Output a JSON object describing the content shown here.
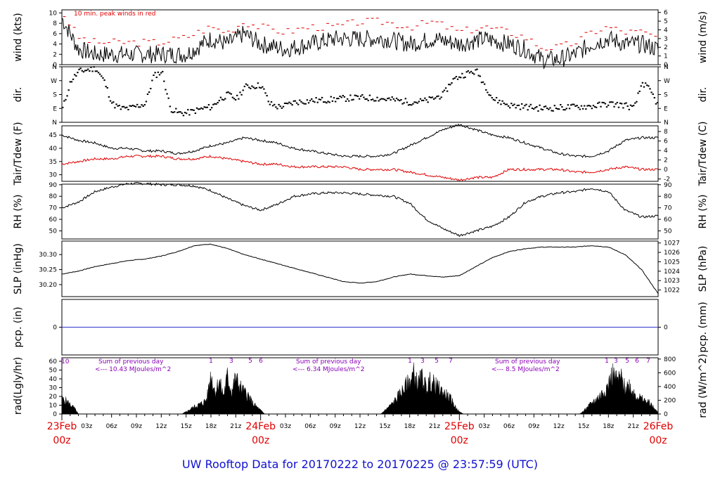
{
  "title": "UW Rooftop Data for 20170222  to  20170225 @ 23:57:59  (UTC)",
  "colors": {
    "text": "#000000",
    "red": "#e00000",
    "blue": "#1010d0",
    "purple": "#8a00b8",
    "precip": "#3333cc"
  },
  "x_axis": {
    "hours_total": 72,
    "hour_ticks": [
      {
        "h": 3,
        "label": "03z"
      },
      {
        "h": 6,
        "label": "06z"
      },
      {
        "h": 9,
        "label": "09z"
      },
      {
        "h": 12,
        "label": "12z"
      },
      {
        "h": 15,
        "label": "15z"
      },
      {
        "h": 18,
        "label": "18z"
      },
      {
        "h": 21,
        "label": "21z"
      },
      {
        "h": 27,
        "label": "03z"
      },
      {
        "h": 30,
        "label": "06z"
      },
      {
        "h": 33,
        "label": "09z"
      },
      {
        "h": 36,
        "label": "12z"
      },
      {
        "h": 39,
        "label": "15z"
      },
      {
        "h": 42,
        "label": "18z"
      },
      {
        "h": 45,
        "label": "21z"
      },
      {
        "h": 51,
        "label": "03z"
      },
      {
        "h": 54,
        "label": "06z"
      },
      {
        "h": 57,
        "label": "09z"
      },
      {
        "h": 60,
        "label": "12z"
      },
      {
        "h": 63,
        "label": "15z"
      },
      {
        "h": 66,
        "label": "18z"
      },
      {
        "h": 69,
        "label": "21z"
      }
    ],
    "day_labels": [
      {
        "h": 0,
        "date": "23Feb",
        "time": "00z"
      },
      {
        "h": 24,
        "date": "24Feb",
        "time": "00z"
      },
      {
        "h": 48,
        "date": "25Feb",
        "time": "00z"
      },
      {
        "h": 72,
        "date": "26Feb",
        "time": "00z"
      }
    ]
  },
  "panels": {
    "wind": {
      "ylabel_left": "wind (kts)",
      "ylabel_right": "wind (m/s)",
      "left_ticks": [
        "0",
        "2",
        "4",
        "6",
        "8",
        "10"
      ],
      "right_ticks": [
        "0",
        "1",
        "2",
        "3",
        "4",
        "5",
        "6"
      ],
      "legend": "10 min. peak winds in red"
    },
    "dir": {
      "ylabel_left": "dir.",
      "ylabel_right": "dir.",
      "left_ticks": [
        "N",
        "E",
        "S",
        "W",
        "N"
      ],
      "right_ticks": [
        "N",
        "E",
        "S",
        "W",
        "N"
      ]
    },
    "temp": {
      "ylabel_left": "Tair/Tdew (F)",
      "ylabel_right": "Tair/Tdew (C)",
      "left_ticks": [
        "30",
        "35",
        "40",
        "45"
      ],
      "right_ticks": [
        "-2",
        "0",
        "2",
        "4",
        "6",
        "8"
      ]
    },
    "rh": {
      "ylabel_left": "RH (%)",
      "ylabel_right": "RH (%)",
      "left_ticks": [
        "50",
        "60",
        "70",
        "80",
        "90"
      ],
      "right_ticks": [
        "50",
        "60",
        "70",
        "80",
        "90"
      ]
    },
    "slp": {
      "ylabel_left": "SLP (inHg)",
      "ylabel_right": "SLP (hPa)",
      "left_ticks": [
        "30.20",
        "30.25",
        "30.30"
      ],
      "right_ticks": [
        "1022",
        "1023",
        "1024",
        "1025",
        "1026",
        "1027"
      ]
    },
    "pcp": {
      "ylabel_left": "pcp. (in)",
      "ylabel_right": "pcp. (mm)",
      "left_ticks": [
        "0"
      ],
      "right_ticks": [
        "0"
      ]
    },
    "rad": {
      "ylabel_left": "rad(Lgly/hr)",
      "ylabel_right": "rad (W/m^2)",
      "left_ticks": [
        "0",
        "10",
        "20",
        "30",
        "40",
        "50",
        "60"
      ],
      "right_ticks": [
        "0",
        "200",
        "400",
        "600",
        "800"
      ],
      "start_label": "10",
      "sum_header": "Sum of previous day",
      "sums": [
        "<--- 10.43 MJoules/m^2",
        "<--- 6.34 MJoules/m^2",
        "<--- 8.5 MJoules/m^2"
      ],
      "marks": [
        {
          "day": 0,
          "labels": [
            "1",
            "3",
            "5",
            "6"
          ]
        },
        {
          "day": 1,
          "labels": [
            "1",
            "3",
            "5",
            "7"
          ]
        },
        {
          "day": 2,
          "labels": [
            "1",
            "3",
            "5",
            "6",
            "7"
          ]
        }
      ]
    }
  },
  "chart_data": {
    "type": "line",
    "x_unit": "hours since 2017-02-23 00z",
    "wind_kts": {
      "hours": [
        0,
        2,
        4,
        6,
        8,
        10,
        12,
        15,
        18,
        20,
        22,
        24,
        27,
        30,
        33,
        36,
        39,
        42,
        45,
        48,
        51,
        54,
        56,
        58,
        60,
        62,
        64,
        66,
        68,
        70,
        72
      ],
      "values": [
        9,
        3,
        2,
        2,
        2,
        2,
        2,
        2,
        5,
        4,
        6,
        4,
        3,
        4,
        5,
        5,
        5,
        4,
        5,
        4,
        5,
        4,
        3,
        1,
        1,
        2,
        4,
        5,
        4,
        4,
        3
      ]
    },
    "wind_peak_kts": {
      "hours": [
        0,
        2,
        4,
        6,
        8,
        10,
        12,
        15,
        18,
        20,
        22,
        24,
        27,
        30,
        33,
        36,
        39,
        42,
        45,
        48,
        51,
        54,
        56,
        58,
        60,
        62,
        64,
        66,
        68,
        70,
        72
      ],
      "values": [
        10,
        5,
        4,
        4,
        4,
        4,
        4,
        5,
        7,
        6,
        8,
        7,
        6,
        7,
        7,
        8,
        8,
        7,
        8,
        6,
        7,
        6,
        5,
        3,
        3,
        4,
        6,
        7,
        6,
        6,
        5
      ]
    },
    "dir_deg": {
      "hours": [
        0,
        1,
        2,
        4,
        5,
        6,
        7,
        8,
        10,
        11,
        12,
        13,
        14,
        15,
        16,
        17,
        18,
        19,
        20,
        21,
        22,
        24,
        25,
        26,
        27,
        28,
        29,
        30,
        32,
        34,
        36,
        38,
        40,
        42,
        44,
        46,
        47,
        48,
        49,
        50,
        52,
        54,
        56,
        58,
        60,
        62,
        64,
        66,
        68,
        69,
        70,
        71,
        72
      ],
      "values": [
        90,
        270,
        330,
        350,
        270,
        120,
        90,
        90,
        120,
        300,
        330,
        90,
        60,
        60,
        75,
        90,
        100,
        150,
        180,
        150,
        230,
        240,
        120,
        100,
        110,
        130,
        135,
        140,
        145,
        155,
        160,
        155,
        145,
        130,
        140,
        180,
        270,
        300,
        320,
        330,
        150,
        110,
        100,
        90,
        95,
        100,
        105,
        120,
        110,
        90,
        260,
        200,
        100
      ]
    },
    "tair_f": {
      "hours": [
        0,
        2,
        4,
        6,
        8,
        10,
        12,
        14,
        16,
        18,
        20,
        22,
        24,
        26,
        28,
        30,
        32,
        34,
        36,
        38,
        40,
        42,
        44,
        46,
        48,
        50,
        52,
        54,
        56,
        58,
        60,
        62,
        64,
        66,
        68,
        70,
        72
      ],
      "values": [
        45,
        43,
        42,
        40,
        40,
        39,
        39,
        38,
        39,
        41,
        42,
        44,
        43,
        42,
        40,
        39,
        38,
        37,
        37,
        37,
        38,
        41,
        44,
        47,
        49,
        47,
        45,
        44,
        42,
        40,
        38,
        37,
        37,
        39,
        43,
        44,
        44
      ]
    },
    "tdew_f": {
      "hours": [
        0,
        2,
        4,
        6,
        8,
        10,
        12,
        14,
        16,
        18,
        20,
        22,
        24,
        26,
        28,
        30,
        32,
        34,
        36,
        38,
        40,
        42,
        44,
        46,
        48,
        50,
        52,
        54,
        56,
        58,
        60,
        62,
        64,
        66,
        68,
        70,
        72
      ],
      "values": [
        34,
        35,
        36,
        36,
        37,
        37,
        37,
        36,
        36,
        37,
        36,
        35,
        34,
        34,
        33,
        33,
        33,
        33,
        32,
        32,
        32,
        31,
        30,
        29,
        28,
        29,
        29,
        32,
        32,
        32,
        32,
        31,
        31,
        32,
        33,
        32,
        32
      ]
    },
    "rh_pct": {
      "hours": [
        0,
        2,
        4,
        6,
        8,
        10,
        12,
        14,
        16,
        18,
        20,
        22,
        24,
        26,
        28,
        30,
        32,
        34,
        36,
        38,
        40,
        42,
        44,
        46,
        48,
        50,
        52,
        54,
        56,
        58,
        60,
        62,
        64,
        66,
        68,
        70,
        72
      ],
      "values": [
        70,
        75,
        84,
        88,
        91,
        91,
        90,
        90,
        89,
        85,
        78,
        72,
        68,
        73,
        80,
        82,
        83,
        83,
        82,
        81,
        80,
        74,
        60,
        52,
        46,
        50,
        54,
        62,
        75,
        80,
        83,
        84,
        87,
        84,
        68,
        62,
        63
      ]
    },
    "slp_inhg": {
      "hours": [
        0,
        2,
        4,
        6,
        8,
        10,
        12,
        14,
        16,
        18,
        20,
        22,
        24,
        26,
        28,
        30,
        32,
        34,
        36,
        38,
        40,
        42,
        44,
        46,
        48,
        50,
        52,
        54,
        56,
        58,
        60,
        62,
        64,
        66,
        68,
        70,
        72
      ],
      "values": [
        30.235,
        30.245,
        30.26,
        30.27,
        30.28,
        30.285,
        30.295,
        30.31,
        30.33,
        30.335,
        30.32,
        30.3,
        30.285,
        30.27,
        30.255,
        30.24,
        30.225,
        30.21,
        30.205,
        30.21,
        30.225,
        30.235,
        30.23,
        30.225,
        30.23,
        30.26,
        30.29,
        30.31,
        30.32,
        30.325,
        30.325,
        30.325,
        30.33,
        30.325,
        30.3,
        30.25,
        30.17
      ]
    },
    "pcp_in": {
      "hours": [
        0,
        72
      ],
      "values": [
        0,
        0
      ]
    },
    "rad_lgly_hr": {
      "hours": [
        0,
        0.5,
        1.5,
        2,
        14.5,
        15,
        16,
        17,
        17.5,
        18,
        18.5,
        19,
        19.5,
        20,
        20.5,
        21,
        21.3,
        22,
        22.5,
        23,
        24,
        24.5,
        38.5,
        39,
        40,
        41,
        42,
        42.5,
        43,
        43.5,
        44,
        44.5,
        45,
        46,
        47,
        47.5,
        48,
        48.5,
        62.5,
        63,
        64,
        65,
        66,
        66.5,
        67,
        67.5,
        68,
        68.5,
        69,
        69.5,
        70,
        71,
        71.5,
        72
      ],
      "values": [
        20,
        18,
        8,
        0,
        0,
        3,
        10,
        15,
        20,
        55,
        30,
        45,
        25,
        52,
        30,
        50,
        40,
        30,
        25,
        15,
        5,
        0,
        0,
        5,
        15,
        30,
        45,
        55,
        40,
        50,
        35,
        45,
        40,
        30,
        20,
        10,
        3,
        0,
        0,
        4,
        15,
        25,
        40,
        55,
        45,
        50,
        35,
        40,
        30,
        25,
        20,
        15,
        8,
        2
      ]
    }
  }
}
